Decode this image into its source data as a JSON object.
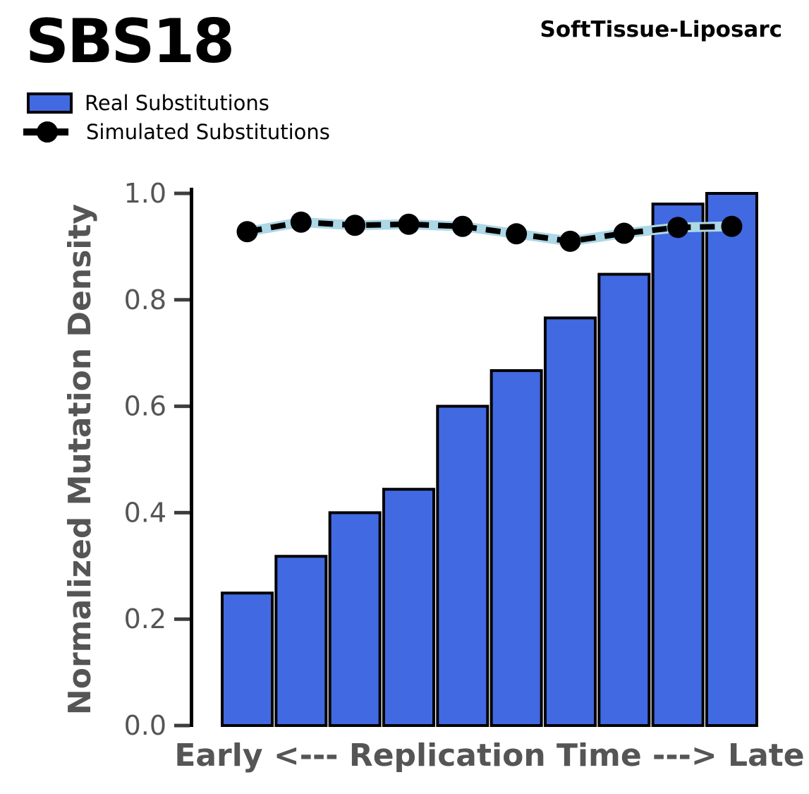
{
  "header": {
    "title": "SBS18",
    "sample": "SoftTissue-Liposarc"
  },
  "legend": [
    {
      "label": "Real Substitutions",
      "marker": "blue-bar-swatch"
    },
    {
      "label": "Simulated Substitutions",
      "marker": "black-dashed-line-with-dot"
    }
  ],
  "chart_data": {
    "type": "bar",
    "title": "SBS18",
    "sample": "SoftTissue-Liposarc",
    "xlabel": "Early <--- Replication Time ---> Late",
    "ylabel": "Normalized Mutation Density",
    "ylim": [
      0.0,
      1.0
    ],
    "yticks": [
      0.0,
      0.2,
      0.4,
      0.6,
      0.8,
      1.0
    ],
    "n_bins": 10,
    "grid": false,
    "legend_position": "upper-left-above-axes",
    "series": [
      {
        "name": "Real Substitutions",
        "type": "bar",
        "values": [
          0.249,
          0.318,
          0.4,
          0.444,
          0.6,
          0.667,
          0.766,
          0.848,
          0.98,
          1.0
        ],
        "fill_color": "#4169E1",
        "edge_color": "#000000"
      },
      {
        "name": "Simulated Substitutions",
        "type": "line",
        "values": [
          0.928,
          0.946,
          0.94,
          0.942,
          0.938,
          0.924,
          0.91,
          0.925,
          0.936,
          0.938
        ],
        "line_color": "#000000",
        "underlay_color": "#ADD8E6",
        "linestyle": "dashed",
        "marker": "circle",
        "marker_color": "#000000"
      }
    ],
    "axis_text_color": "#555555",
    "spine_color": "#000000",
    "tick_color": "#3d3d3d"
  }
}
